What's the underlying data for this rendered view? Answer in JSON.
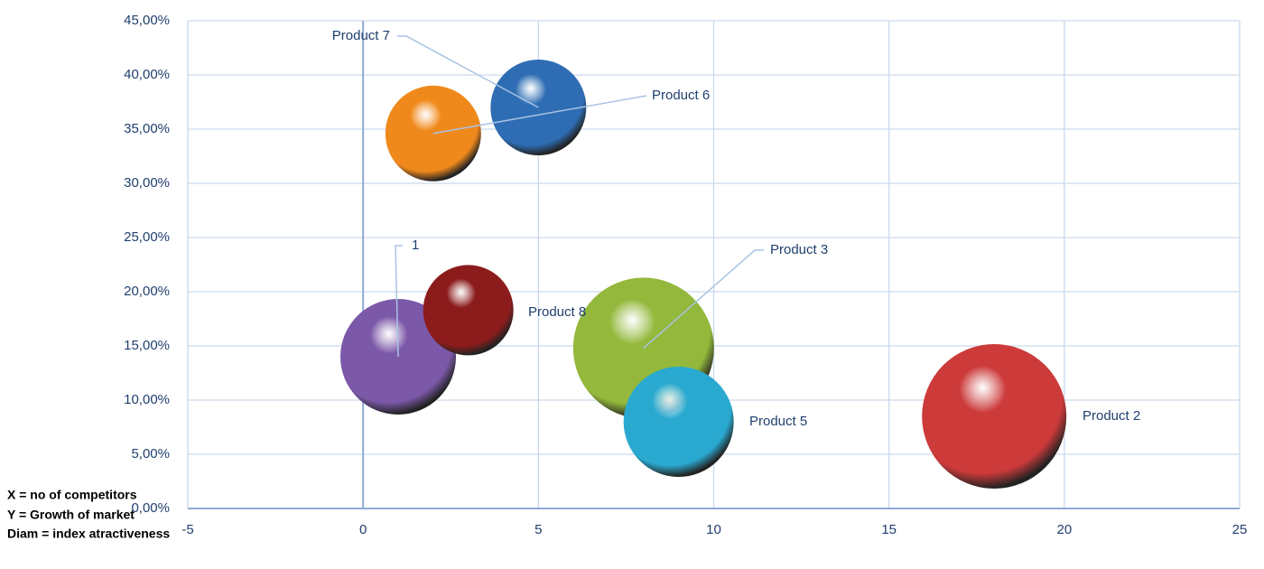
{
  "chart_data": {
    "type": "bubble",
    "x": [
      1,
      3,
      2,
      5,
      8,
      9,
      18
    ],
    "labels": [
      "1",
      "Product 8",
      "Product 6",
      "Product 7",
      "Product 3",
      "Product 5",
      "Product 2"
    ],
    "colors": [
      "#7b58a8",
      "#8c1c1c",
      "#f0891c",
      "#2e6db3",
      "#93b83c",
      "#2aa9d0",
      "#cc3a3a"
    ],
    "series": [
      {
        "values": [
          14,
          18.3,
          34.6,
          37,
          14.8,
          8,
          8.5
        ],
        "sizes": [
          12.8,
          10,
          10.6,
          10.6,
          15.6,
          12.2,
          16
        ]
      }
    ],
    "xlim": [
      -5,
      25
    ],
    "xticks": [
      -5,
      0,
      5,
      10,
      15,
      20,
      25
    ],
    "ylim": [
      0,
      45
    ],
    "yticks": [
      {
        "value": 0,
        "label": "0,00%"
      },
      {
        "value": 5,
        "label": "5,00%"
      },
      {
        "value": 10,
        "label": "10,00%"
      },
      {
        "value": 15,
        "label": "15,00%"
      },
      {
        "value": 20,
        "label": "20,00%"
      },
      {
        "value": 25,
        "label": "25,00%"
      },
      {
        "value": 30,
        "label": "30,00%"
      },
      {
        "value": 35,
        "label": "35,00%"
      },
      {
        "value": 40,
        "label": "40,00%"
      },
      {
        "value": 45,
        "label": "45,00%"
      }
    ],
    "grid": true,
    "annotations": [
      "X = no of competitors",
      "Y = Growth of market",
      "Diam = index atractiveness"
    ]
  }
}
